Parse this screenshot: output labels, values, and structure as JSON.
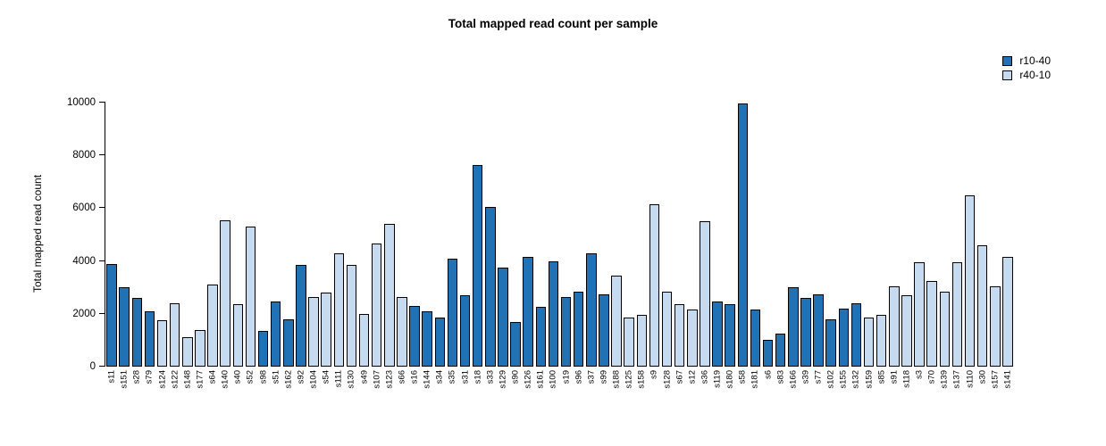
{
  "title": "Total mapped read count per sample",
  "chart_data": {
    "type": "bar",
    "title": "Total mapped read count per sample",
    "xlabel": "",
    "ylabel": "Total mapped read count",
    "ylim": [
      0,
      10000
    ],
    "yticks": [
      0,
      2000,
      4000,
      6000,
      8000,
      10000
    ],
    "grid": false,
    "legend_position": "top-right",
    "legend": [
      {
        "label": "r10-40",
        "color": "#2171B5"
      },
      {
        "label": "r40-10",
        "color": "#C6DBEF"
      }
    ],
    "series_colors": {
      "r10-40": "#2171B5",
      "r40-10": "#C6DBEF"
    },
    "bar_border_color": "#000000",
    "samples": [
      {
        "label": "s11",
        "value": 3900,
        "series": "r10-40"
      },
      {
        "label": "s151",
        "value": 3000,
        "series": "r10-40"
      },
      {
        "label": "s28",
        "value": 2600,
        "series": "r10-40"
      },
      {
        "label": "s79",
        "value": 2100,
        "series": "r10-40"
      },
      {
        "label": "s124",
        "value": 1750,
        "series": "r40-10"
      },
      {
        "label": "s122",
        "value": 2400,
        "series": "r40-10"
      },
      {
        "label": "s148",
        "value": 1100,
        "series": "r40-10"
      },
      {
        "label": "s177",
        "value": 1400,
        "series": "r40-10"
      },
      {
        "label": "s64",
        "value": 3100,
        "series": "r40-10"
      },
      {
        "label": "s140",
        "value": 5550,
        "series": "r40-10"
      },
      {
        "label": "s40",
        "value": 2350,
        "series": "r40-10"
      },
      {
        "label": "s52",
        "value": 5300,
        "series": "r40-10"
      },
      {
        "label": "s98",
        "value": 1350,
        "series": "r10-40"
      },
      {
        "label": "s51",
        "value": 2450,
        "series": "r10-40"
      },
      {
        "label": "s162",
        "value": 1800,
        "series": "r10-40"
      },
      {
        "label": "s92",
        "value": 3850,
        "series": "r10-40"
      },
      {
        "label": "s104",
        "value": 2650,
        "series": "r40-10"
      },
      {
        "label": "s54",
        "value": 2800,
        "series": "r40-10"
      },
      {
        "label": "s111",
        "value": 4300,
        "series": "r40-10"
      },
      {
        "label": "s130",
        "value": 3850,
        "series": "r40-10"
      },
      {
        "label": "s49",
        "value": 2000,
        "series": "r40-10"
      },
      {
        "label": "s107",
        "value": 4650,
        "series": "r40-10"
      },
      {
        "label": "s123",
        "value": 5400,
        "series": "r40-10"
      },
      {
        "label": "s66",
        "value": 2650,
        "series": "r40-10"
      },
      {
        "label": "s16",
        "value": 2300,
        "series": "r10-40"
      },
      {
        "label": "s144",
        "value": 2100,
        "series": "r10-40"
      },
      {
        "label": "s34",
        "value": 1850,
        "series": "r10-40"
      },
      {
        "label": "s35",
        "value": 4100,
        "series": "r10-40"
      },
      {
        "label": "s31",
        "value": 2700,
        "series": "r10-40"
      },
      {
        "label": "s18",
        "value": 7650,
        "series": "r10-40"
      },
      {
        "label": "s33",
        "value": 6050,
        "series": "r10-40"
      },
      {
        "label": "s129",
        "value": 3750,
        "series": "r10-40"
      },
      {
        "label": "s90",
        "value": 1700,
        "series": "r10-40"
      },
      {
        "label": "s126",
        "value": 4150,
        "series": "r10-40"
      },
      {
        "label": "s161",
        "value": 2250,
        "series": "r10-40"
      },
      {
        "label": "s100",
        "value": 4000,
        "series": "r10-40"
      },
      {
        "label": "s19",
        "value": 2650,
        "series": "r10-40"
      },
      {
        "label": "s96",
        "value": 2850,
        "series": "r10-40"
      },
      {
        "label": "s37",
        "value": 4300,
        "series": "r10-40"
      },
      {
        "label": "s99",
        "value": 2750,
        "series": "r10-40"
      },
      {
        "label": "s188",
        "value": 3450,
        "series": "r40-10"
      },
      {
        "label": "s125",
        "value": 1850,
        "series": "r40-10"
      },
      {
        "label": "s158",
        "value": 1950,
        "series": "r40-10"
      },
      {
        "label": "s9",
        "value": 6150,
        "series": "r40-10"
      },
      {
        "label": "s128",
        "value": 2850,
        "series": "r40-10"
      },
      {
        "label": "s67",
        "value": 2350,
        "series": "r40-10"
      },
      {
        "label": "s12",
        "value": 2150,
        "series": "r40-10"
      },
      {
        "label": "s36",
        "value": 5500,
        "series": "r40-10"
      },
      {
        "label": "s119",
        "value": 2450,
        "series": "r10-40"
      },
      {
        "label": "s180",
        "value": 2350,
        "series": "r10-40"
      },
      {
        "label": "s58",
        "value": 9950,
        "series": "r10-40"
      },
      {
        "label": "s181",
        "value": 2150,
        "series": "r10-40"
      },
      {
        "label": "s6",
        "value": 1000,
        "series": "r10-40"
      },
      {
        "label": "s83",
        "value": 1250,
        "series": "r10-40"
      },
      {
        "label": "s166",
        "value": 3000,
        "series": "r10-40"
      },
      {
        "label": "s39",
        "value": 2600,
        "series": "r10-40"
      },
      {
        "label": "s77",
        "value": 2750,
        "series": "r10-40"
      },
      {
        "label": "s102",
        "value": 1800,
        "series": "r10-40"
      },
      {
        "label": "s155",
        "value": 2200,
        "series": "r10-40"
      },
      {
        "label": "s132",
        "value": 2400,
        "series": "r10-40"
      },
      {
        "label": "s159",
        "value": 1850,
        "series": "r40-10"
      },
      {
        "label": "s85",
        "value": 1950,
        "series": "r40-10"
      },
      {
        "label": "s91",
        "value": 3050,
        "series": "r40-10"
      },
      {
        "label": "s118",
        "value": 2700,
        "series": "r40-10"
      },
      {
        "label": "s3",
        "value": 3950,
        "series": "r40-10"
      },
      {
        "label": "s70",
        "value": 3250,
        "series": "r40-10"
      },
      {
        "label": "s139",
        "value": 2850,
        "series": "r40-10"
      },
      {
        "label": "s137",
        "value": 3950,
        "series": "r40-10"
      },
      {
        "label": "s110",
        "value": 6500,
        "series": "r40-10"
      },
      {
        "label": "s30",
        "value": 4600,
        "series": "r40-10"
      },
      {
        "label": "s157",
        "value": 3050,
        "series": "r40-10"
      },
      {
        "label": "s141",
        "value": 4150,
        "series": "r40-10"
      }
    ]
  }
}
